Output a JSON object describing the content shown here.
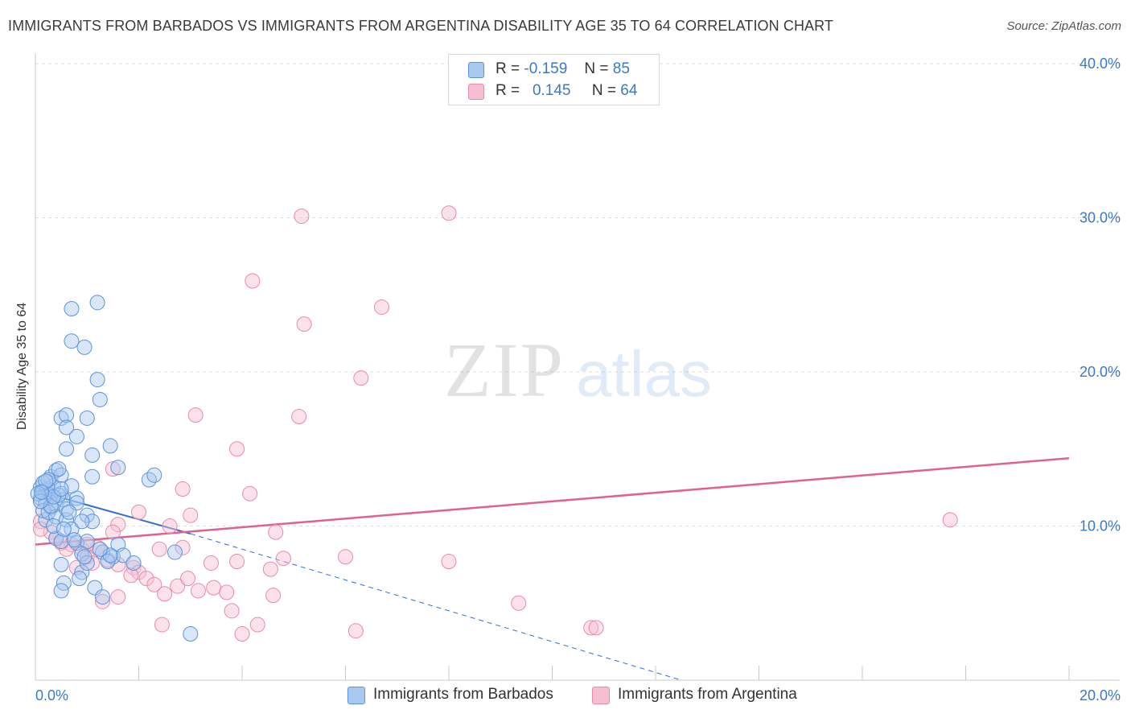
{
  "header": {
    "title": "IMMIGRANTS FROM BARBADOS VS IMMIGRANTS FROM ARGENTINA DISABILITY AGE 35 TO 64 CORRELATION CHART",
    "source": "Source: ZipAtlas.com"
  },
  "watermark": {
    "zip": "ZIP",
    "atlas": "atlas"
  },
  "colors": {
    "barbados_fill": "#a9c8f0",
    "barbados_stroke": "#5b93d8",
    "barbados_line": "#2f6fcf",
    "argentina_fill": "#f6bfd0",
    "argentina_stroke": "#e88aa8",
    "argentina_line": "#e0628c",
    "tick_label": "#3a78c9",
    "grid": "#dddddd"
  },
  "stats": {
    "r_label": "R =",
    "n_label": "N =",
    "barbados": {
      "r": "-0.159",
      "n": "85"
    },
    "argentina": {
      "r": "0.145",
      "n": "64"
    }
  },
  "chart_data": {
    "type": "scatter",
    "title": "IMMIGRANTS FROM BARBADOS VS IMMIGRANTS FROM ARGENTINA DISABILITY AGE 35 TO 64 CORRELATION CHART",
    "xlabel": "",
    "ylabel": "Disability Age 35 to 64",
    "xlim": [
      0,
      20
    ],
    "ylim": [
      0,
      40
    ],
    "x_tick_labels": [
      {
        "value": 0,
        "label": "0.0%"
      },
      {
        "value": 20,
        "label": "20.0%"
      }
    ],
    "y_tick_labels": [
      {
        "value": 10,
        "label": "10.0%"
      },
      {
        "value": 20,
        "label": "20.0%"
      },
      {
        "value": 30,
        "label": "30.0%"
      },
      {
        "value": 40,
        "label": "40.0%"
      }
    ],
    "grid": true,
    "legend_position": "top-center and bottom",
    "series": [
      {
        "name": "Immigrants from Barbados",
        "r": -0.159,
        "n": 85,
        "trend": {
          "x0": 0,
          "y0": 12.3,
          "x1": 3.0,
          "y1": 9.5,
          "dashed_to_x": 12.5,
          "dashed_to_y": 0
        },
        "points": [
          [
            0.1,
            12.5
          ],
          [
            0.15,
            12.3
          ],
          [
            0.2,
            12.2
          ],
          [
            0.25,
            12.4
          ],
          [
            0.3,
            12.0
          ],
          [
            0.1,
            11.8
          ],
          [
            0.2,
            11.5
          ],
          [
            0.3,
            11.2
          ],
          [
            0.4,
            11.4
          ],
          [
            0.35,
            12.6
          ],
          [
            0.5,
            12.1
          ],
          [
            0.55,
            11.7
          ],
          [
            0.2,
            10.4
          ],
          [
            0.15,
            11.0
          ],
          [
            0.25,
            10.9
          ],
          [
            0.4,
            10.6
          ],
          [
            0.6,
            10.4
          ],
          [
            0.8,
            11.8
          ],
          [
            0.7,
            12.6
          ],
          [
            0.3,
            13.2
          ],
          [
            0.4,
            13.6
          ],
          [
            0.5,
            13.3
          ],
          [
            0.45,
            13.7
          ],
          [
            1.1,
            13.2
          ],
          [
            1.6,
            13.8
          ],
          [
            2.2,
            13.0
          ],
          [
            2.3,
            13.3
          ],
          [
            0.6,
            15.0
          ],
          [
            0.8,
            15.8
          ],
          [
            1.1,
            14.6
          ],
          [
            1.45,
            15.2
          ],
          [
            0.5,
            17.0
          ],
          [
            0.6,
            17.2
          ],
          [
            0.6,
            16.4
          ],
          [
            1.0,
            17.0
          ],
          [
            1.2,
            19.5
          ],
          [
            1.25,
            18.2
          ],
          [
            0.7,
            22.0
          ],
          [
            0.95,
            21.6
          ],
          [
            0.7,
            24.1
          ],
          [
            1.2,
            24.5
          ],
          [
            0.4,
            9.2
          ],
          [
            0.5,
            9.0
          ],
          [
            0.8,
            8.9
          ],
          [
            1.0,
            9.0
          ],
          [
            0.9,
            8.2
          ],
          [
            1.3,
            8.3
          ],
          [
            1.5,
            8.0
          ],
          [
            1.6,
            8.8
          ],
          [
            1.7,
            8.1
          ],
          [
            2.7,
            8.3
          ],
          [
            1.4,
            7.7
          ],
          [
            1.9,
            7.6
          ],
          [
            0.5,
            7.5
          ],
          [
            0.9,
            7.0
          ],
          [
            1.0,
            7.6
          ],
          [
            0.55,
            6.3
          ],
          [
            0.85,
            6.6
          ],
          [
            1.15,
            6.0
          ],
          [
            0.5,
            5.8
          ],
          [
            1.3,
            5.4
          ],
          [
            3.0,
            3.0
          ],
          [
            0.3,
            11.3
          ],
          [
            0.6,
            11.1
          ],
          [
            0.8,
            11.5
          ],
          [
            1.0,
            10.7
          ],
          [
            1.1,
            10.3
          ],
          [
            0.7,
            9.8
          ],
          [
            0.35,
            10.0
          ],
          [
            0.45,
            12.0
          ],
          [
            0.15,
            12.8
          ],
          [
            0.25,
            13.0
          ],
          [
            0.05,
            12.1
          ],
          [
            0.1,
            11.6
          ],
          [
            0.35,
            11.9
          ],
          [
            0.65,
            10.9
          ],
          [
            0.9,
            10.3
          ],
          [
            0.2,
            12.9
          ],
          [
            0.5,
            12.4
          ],
          [
            0.12,
            12.2
          ],
          [
            1.45,
            8.1
          ],
          [
            0.75,
            9.1
          ],
          [
            1.25,
            8.5
          ],
          [
            0.95,
            8.0
          ],
          [
            0.55,
            9.8
          ]
        ]
      },
      {
        "name": "Immigrants from Argentina",
        "r": 0.145,
        "n": 64,
        "trend": {
          "x0": 0,
          "y0": 8.8,
          "x1": 20,
          "y1": 14.4
        },
        "points": [
          [
            0.1,
            10.3
          ],
          [
            0.3,
            9.6
          ],
          [
            0.4,
            9.2
          ],
          [
            0.5,
            8.9
          ],
          [
            0.7,
            8.8
          ],
          [
            0.9,
            8.5
          ],
          [
            1.0,
            8.0
          ],
          [
            1.2,
            8.6
          ],
          [
            1.1,
            7.6
          ],
          [
            0.8,
            7.3
          ],
          [
            1.4,
            7.8
          ],
          [
            1.6,
            7.5
          ],
          [
            1.9,
            7.3
          ],
          [
            2.0,
            7.0
          ],
          [
            1.85,
            6.8
          ],
          [
            2.15,
            6.6
          ],
          [
            2.3,
            6.2
          ],
          [
            2.5,
            5.6
          ],
          [
            2.75,
            6.1
          ],
          [
            2.95,
            6.6
          ],
          [
            3.15,
            5.8
          ],
          [
            3.45,
            6.0
          ],
          [
            3.7,
            5.7
          ],
          [
            1.6,
            10.1
          ],
          [
            2.0,
            10.9
          ],
          [
            2.6,
            10.0
          ],
          [
            3.0,
            10.7
          ],
          [
            2.85,
            8.6
          ],
          [
            2.4,
            8.5
          ],
          [
            3.4,
            7.6
          ],
          [
            3.9,
            7.7
          ],
          [
            4.8,
            7.9
          ],
          [
            4.55,
            7.2
          ],
          [
            4.15,
            12.1
          ],
          [
            2.85,
            12.4
          ],
          [
            4.65,
            9.6
          ],
          [
            6.0,
            8.0
          ],
          [
            8.0,
            7.7
          ],
          [
            1.5,
            13.7
          ],
          [
            1.5,
            9.6
          ],
          [
            3.1,
            17.2
          ],
          [
            3.9,
            15.0
          ],
          [
            5.1,
            17.1
          ],
          [
            6.3,
            19.6
          ],
          [
            5.2,
            23.1
          ],
          [
            6.7,
            24.2
          ],
          [
            4.2,
            25.9
          ],
          [
            5.15,
            30.1
          ],
          [
            8.0,
            30.3
          ],
          [
            9.35,
            5.0
          ],
          [
            10.75,
            3.4
          ],
          [
            10.85,
            3.4
          ],
          [
            17.7,
            10.4
          ],
          [
            6.2,
            3.2
          ],
          [
            4.3,
            3.6
          ],
          [
            4.0,
            3.0
          ],
          [
            3.8,
            4.5
          ],
          [
            2.45,
            3.6
          ],
          [
            1.3,
            5.1
          ],
          [
            1.6,
            5.4
          ],
          [
            4.6,
            5.5
          ],
          [
            1.0,
            8.8
          ],
          [
            0.6,
            8.5
          ],
          [
            0.1,
            9.8
          ]
        ]
      }
    ]
  }
}
